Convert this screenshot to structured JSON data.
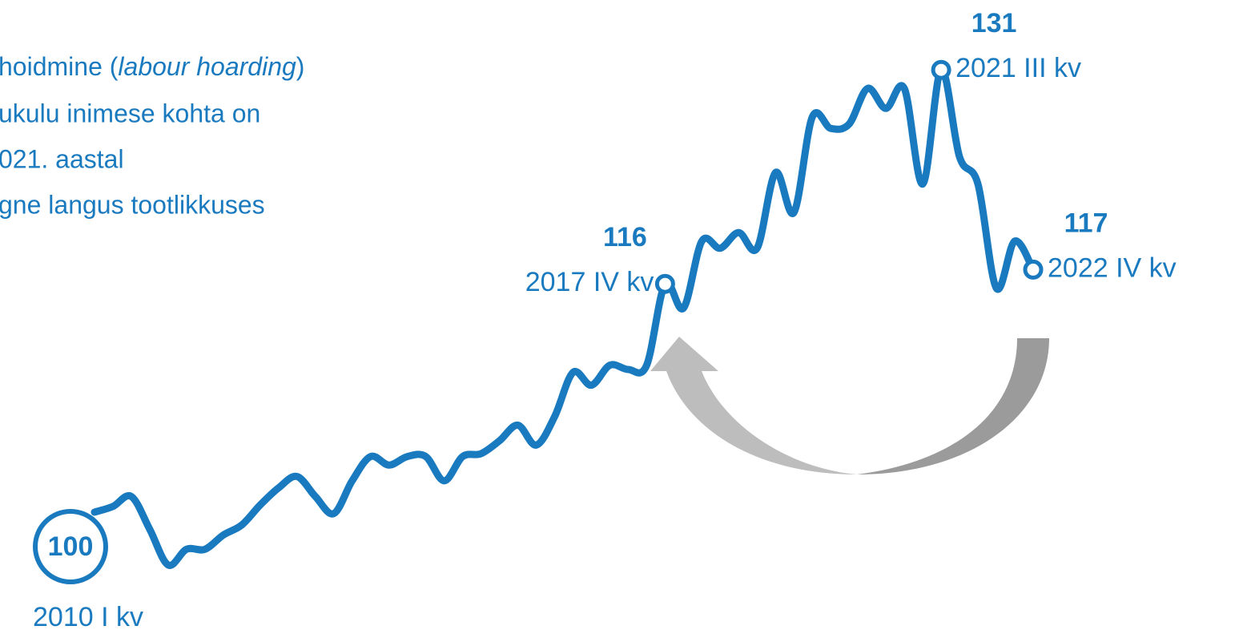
{
  "chart_data": {
    "type": "line",
    "annotation_lines": [
      [
        "hoidmine (",
        "labour hoarding",
        ")"
      ],
      [
        "ukulu inimese kohta on"
      ],
      [
        "021. aastal"
      ],
      [
        "gne langus tootlikkuses"
      ]
    ],
    "categories": [
      "2010 I kv",
      null,
      null,
      null,
      null,
      null,
      null,
      null,
      null,
      null,
      null,
      null,
      null,
      null,
      null,
      null,
      null,
      null,
      null,
      null,
      null,
      null,
      null,
      null,
      null,
      null,
      null,
      null,
      null,
      null,
      null,
      "2017 IV kv",
      null,
      null,
      null,
      null,
      null,
      null,
      null,
      null,
      null,
      null,
      null,
      null,
      null,
      null,
      "2021 III kv",
      null,
      null,
      null,
      null,
      "2022 IV kv"
    ],
    "series": [
      {
        "name": null,
        "color": "#1a7abf",
        "values": [
          100,
          100.4,
          101.1,
          98.8,
          96.3,
          97.4,
          97.4,
          98.4,
          99.1,
          100.5,
          101.7,
          102.5,
          101.1,
          99.9,
          102.2,
          103.9,
          103.3,
          103.9,
          103.9,
          102.2,
          103.9,
          104.1,
          105.0,
          106.1,
          104.7,
          106.7,
          109.8,
          108.9,
          110.3,
          110.0,
          110.3,
          116,
          114.3,
          119.0,
          118.5,
          119.6,
          118.5,
          123.8,
          121.0,
          127.7,
          126.9,
          127.2,
          129.7,
          128.3,
          129.7,
          123.0,
          131,
          124.9,
          123.0,
          115.7,
          119.0,
          117
        ]
      }
    ]
  }
}
